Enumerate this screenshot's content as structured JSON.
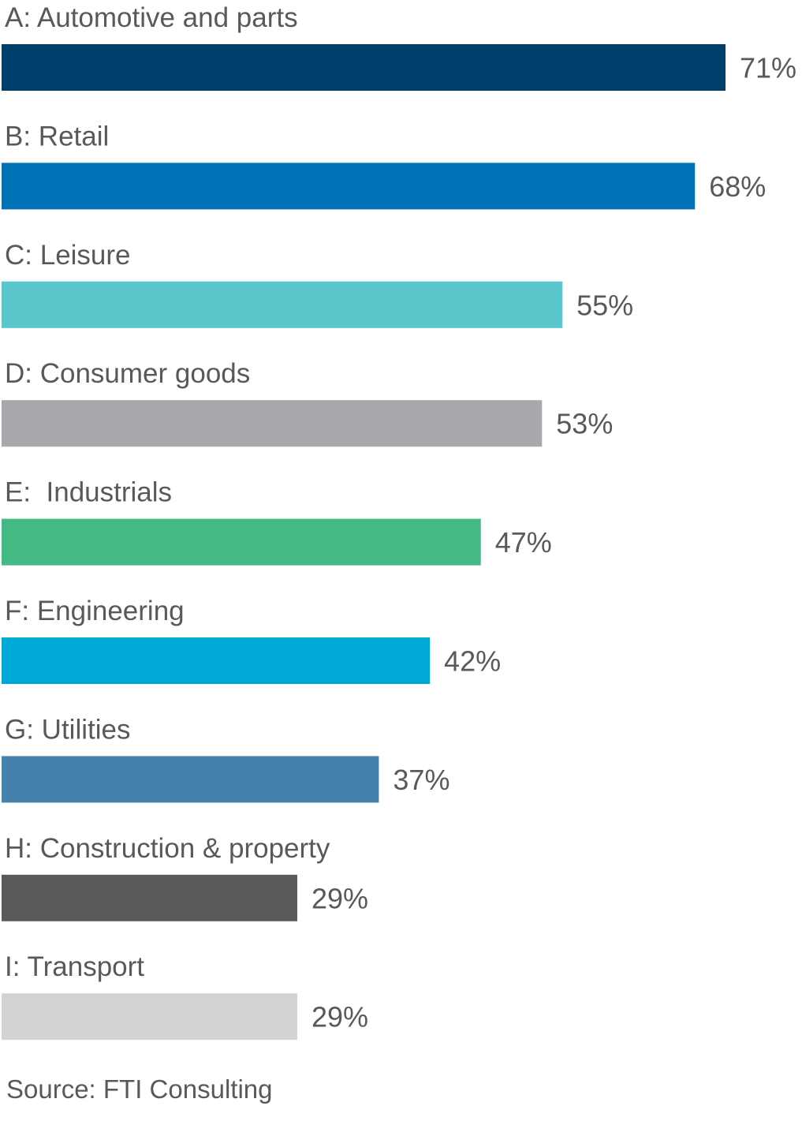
{
  "chart_data": {
    "type": "bar",
    "orientation": "horizontal",
    "title": "",
    "xlabel": "",
    "ylabel": "",
    "xlim": [
      0,
      78
    ],
    "grid": false,
    "legend": "none",
    "value_format": "percent",
    "categories": [
      "A: Automotive and parts",
      "B: Retail",
      "C: Leisure",
      "D: Consumer goods",
      "E:  Industrials",
      "F: Engineering",
      "G: Utilities",
      "H: Construction & property",
      "I: Transport"
    ],
    "values": [
      71,
      68,
      55,
      53,
      47,
      42,
      37,
      29,
      29
    ],
    "value_labels": [
      "71%",
      "68%",
      "55%",
      "53%",
      "47%",
      "42%",
      "37%",
      "29%",
      "29%"
    ],
    "colors": [
      "#003f6b",
      "#0072b5",
      "#5bc6cb",
      "#a7a9ac",
      "#43b983",
      "#00a8d6",
      "#4581ac",
      "#58595b",
      "#d1d3d4"
    ]
  },
  "source": "Source: FTI Consulting"
}
